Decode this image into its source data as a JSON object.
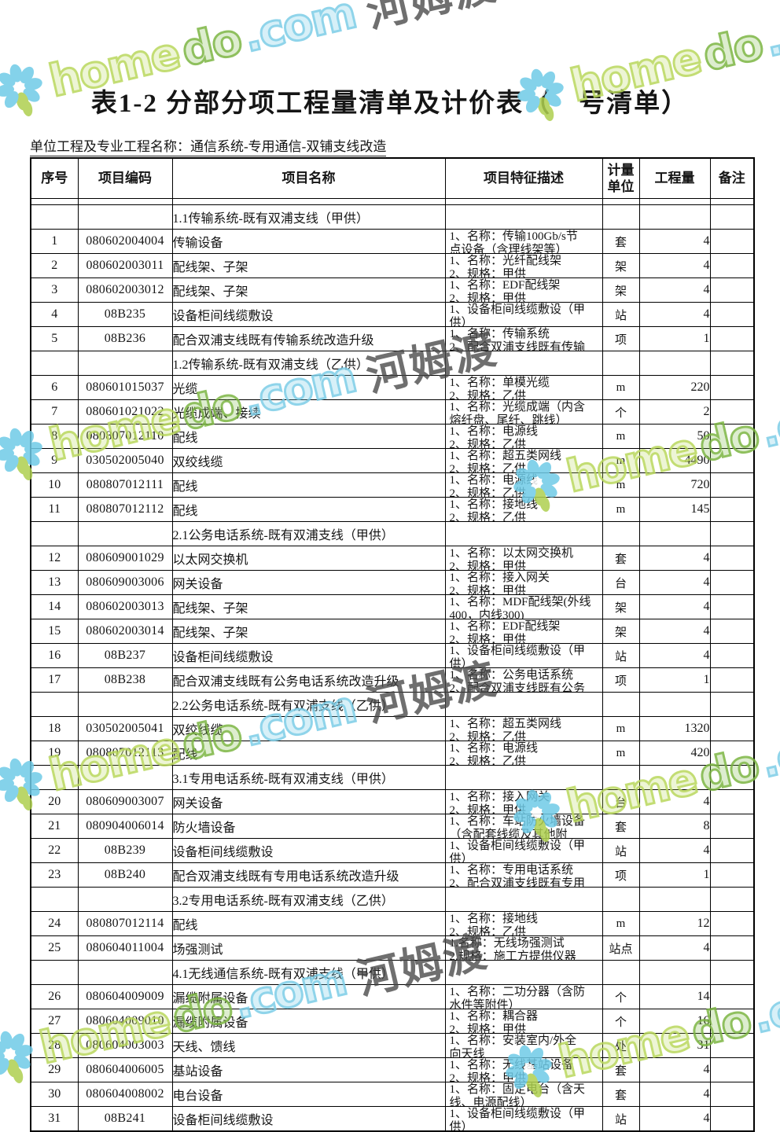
{
  "title": "表1-2 分部分项工程量清单及计价表（　号清单）",
  "subtitle": "单位工程及专业工程名称：通信系统-专用通信-双铺支线改造",
  "watermark": {
    "home": "home",
    "do": "do",
    "com": ".com",
    "cn": "河姆渡",
    "colors": {
      "petal_blue": "#6fcbe7",
      "petal_green": "#aed04f",
      "latin_light_green": "#b9d85c",
      "latin_dark_green": "#7cb642",
      "latin_cyan": "#7ccde7",
      "cn_gray": "#474747"
    }
  },
  "table": {
    "headers": [
      "序号",
      "项目编码",
      "项目名称",
      "项目特征描述",
      "计量单位",
      "工程量",
      "备注"
    ],
    "rows": [
      {
        "type": "section",
        "no": "",
        "code": "",
        "name": "1.1传输系统-既有双浦支线（甲供）",
        "d1": "",
        "d2": "",
        "unit": "",
        "qty": "",
        "note": ""
      },
      {
        "type": "item",
        "no": "1",
        "code": "080602004004",
        "name": "传输设备",
        "d1": "1、名称：传输100Gb/s节",
        "d2": "点设备（含理线架等）",
        "unit": "套",
        "qty": "4",
        "note": ""
      },
      {
        "type": "item",
        "no": "2",
        "code": "080602003011",
        "name": "配线架、子架",
        "d1": "1、名称：光纤配线架",
        "d2": "2、规格：甲供",
        "unit": "架",
        "qty": "4",
        "note": ""
      },
      {
        "type": "item",
        "no": "3",
        "code": "080602003012",
        "name": "配线架、子架",
        "d1": "1、名称：EDF配线架",
        "d2": "2、规格：甲供",
        "unit": "架",
        "qty": "4",
        "note": ""
      },
      {
        "type": "item",
        "no": "4",
        "code": "08B235",
        "name": "设备柜间线缆敷设",
        "d1": "1、设备柜间线缆敷设（甲",
        "d2": "供）",
        "unit": "站",
        "qty": "4",
        "note": ""
      },
      {
        "type": "item",
        "no": "5",
        "code": "08B236",
        "name": "配合双浦支线既有传输系统改造升级",
        "d1": "1、名称：传输系统",
        "d2": "2、配合双浦支线既有传输",
        "unit": "项",
        "qty": "1",
        "note": ""
      },
      {
        "type": "section",
        "no": "",
        "code": "",
        "name": "1.2传输系统-既有双浦支线（乙供）",
        "d1": "",
        "d2": "",
        "unit": "",
        "qty": "",
        "note": ""
      },
      {
        "type": "item",
        "no": "6",
        "code": "080601015037",
        "name": "光缆",
        "d1": "1、名称：单模光缆",
        "d2": "2、规格：乙供",
        "unit": "m",
        "qty": "220",
        "note": ""
      },
      {
        "type": "item",
        "no": "7",
        "code": "080601021022",
        "name": "光缆成端、接续",
        "d1": "1、名称：光缆成端（内含",
        "d2": "熔纤盘、尾纤、跳线）",
        "unit": "个",
        "qty": "2",
        "note": ""
      },
      {
        "type": "item",
        "no": "8",
        "code": "080807012110",
        "name": "配线",
        "d1": "1、名称：电源线",
        "d2": "2、规格：乙供",
        "unit": "m",
        "qty": "50",
        "note": ""
      },
      {
        "type": "item",
        "no": "9",
        "code": "030502005040",
        "name": "双绞线缆",
        "d1": "1、名称：超五类网线",
        "d2": "2、规格：乙供",
        "unit": "m",
        "qty": "4490",
        "note": ""
      },
      {
        "type": "item",
        "no": "10",
        "code": "080807012111",
        "name": "配线",
        "d1": "1、名称：电源线",
        "d2": "2、规格：乙供",
        "unit": "m",
        "qty": "720",
        "note": ""
      },
      {
        "type": "item",
        "no": "11",
        "code": "080807012112",
        "name": "配线",
        "d1": "1、名称：接地线",
        "d2": "2、规格：乙供",
        "unit": "m",
        "qty": "145",
        "note": ""
      },
      {
        "type": "section",
        "no": "",
        "code": "",
        "name": "2.1公务电话系统-既有双浦支线（甲供）",
        "d1": "",
        "d2": "",
        "unit": "",
        "qty": "",
        "note": ""
      },
      {
        "type": "item",
        "no": "12",
        "code": "080609001029",
        "name": "以太网交换机",
        "d1": "1、名称：以太网交换机",
        "d2": "2、规格：甲供",
        "unit": "套",
        "qty": "4",
        "note": ""
      },
      {
        "type": "item",
        "no": "13",
        "code": "080609003006",
        "name": "网关设备",
        "d1": "1、名称：接入网关",
        "d2": "2、规格：甲供",
        "unit": "台",
        "qty": "4",
        "note": ""
      },
      {
        "type": "item",
        "no": "14",
        "code": "080602003013",
        "name": "配线架、子架",
        "d1": "1、名称：MDF配线架(外线",
        "d2": "400，内线300)",
        "unit": "架",
        "qty": "4",
        "note": ""
      },
      {
        "type": "item",
        "no": "15",
        "code": "080602003014",
        "name": "配线架、子架",
        "d1": "1、名称：EDF配线架",
        "d2": "2、规格：甲供",
        "unit": "架",
        "qty": "4",
        "note": ""
      },
      {
        "type": "item",
        "no": "16",
        "code": "08B237",
        "name": "设备柜间线缆敷设",
        "d1": "1、设备柜间线缆敷设（甲",
        "d2": "供）",
        "unit": "站",
        "qty": "4",
        "note": ""
      },
      {
        "type": "item",
        "no": "17",
        "code": "08B238",
        "name": "配合双浦支线既有公务电话系统改造升级",
        "d1": "1、名称：公务电话系统",
        "d2": "2、配合双浦支线既有公务",
        "unit": "项",
        "qty": "1",
        "note": ""
      },
      {
        "type": "section",
        "no": "",
        "code": "",
        "name": "2.2公务电话系统-既有双浦支线（乙供）",
        "d1": "",
        "d2": "",
        "unit": "",
        "qty": "",
        "note": ""
      },
      {
        "type": "item",
        "no": "18",
        "code": "030502005041",
        "name": "双绞线缆",
        "d1": "1、名称：超五类网线",
        "d2": "2、规格：乙供",
        "unit": "m",
        "qty": "1320",
        "note": ""
      },
      {
        "type": "item",
        "no": "19",
        "code": "080807012113",
        "name": "配线",
        "d1": "1、名称：电源线",
        "d2": "2、规格：乙供",
        "unit": "m",
        "qty": "420",
        "note": ""
      },
      {
        "type": "section",
        "no": "",
        "code": "",
        "name": "3.1专用电话系统-既有双浦支线（甲供）",
        "d1": "",
        "d2": "",
        "unit": "",
        "qty": "",
        "note": ""
      },
      {
        "type": "item",
        "no": "20",
        "code": "080609003007",
        "name": "网关设备",
        "d1": "1、名称：接入网关",
        "d2": "2、规格：甲供",
        "unit": "台",
        "qty": "4",
        "note": ""
      },
      {
        "type": "item",
        "no": "21",
        "code": "080904006014",
        "name": "防火墙设备",
        "d1": "1、名称：车站防火墙设备",
        "d2": "（含配套线缆及其他附",
        "unit": "套",
        "qty": "8",
        "note": ""
      },
      {
        "type": "item",
        "no": "22",
        "code": "08B239",
        "name": "设备柜间线缆敷设",
        "d1": "1、设备柜间线缆敷设（甲",
        "d2": "供）",
        "unit": "站",
        "qty": "4",
        "note": ""
      },
      {
        "type": "item",
        "no": "23",
        "code": "08B240",
        "name": "配合双浦支线既有专用电话系统改造升级",
        "d1": "1、名称：专用电话系统",
        "d2": "2、配合双浦支线既有专用",
        "unit": "项",
        "qty": "1",
        "note": ""
      },
      {
        "type": "section",
        "no": "",
        "code": "",
        "name": "3.2专用电话系统-既有双浦支线（乙供）",
        "d1": "",
        "d2": "",
        "unit": "",
        "qty": "",
        "note": ""
      },
      {
        "type": "item",
        "no": "24",
        "code": "080807012114",
        "name": "配线",
        "d1": "1、名称：接地线",
        "d2": "2、规格：乙供",
        "unit": "m",
        "qty": "12",
        "note": ""
      },
      {
        "type": "item",
        "no": "25",
        "code": "080604011004",
        "name": "场强测试",
        "d1": "1.名称：无线场强测试",
        "d2": "2.规格：施工方提供仪器",
        "unit": "站点",
        "qty": "4",
        "note": ""
      },
      {
        "type": "section",
        "no": "",
        "code": "",
        "name": "4.1无线通信系统-既有双浦支线（甲供）",
        "d1": "",
        "d2": "",
        "unit": "",
        "qty": "",
        "note": ""
      },
      {
        "type": "item",
        "no": "26",
        "code": "080604009009",
        "name": "漏缆附属设备",
        "d1": "1、名称：二功分器（含防",
        "d2": "水件等附件）",
        "unit": "个",
        "qty": "14",
        "note": ""
      },
      {
        "type": "item",
        "no": "27",
        "code": "080604009010",
        "name": "漏缆附属设备",
        "d1": "1、名称：耦合器",
        "d2": "2、规格：甲供",
        "unit": "个",
        "qty": "16",
        "note": ""
      },
      {
        "type": "item",
        "no": "28",
        "code": "080604003003",
        "name": "天线、馈线",
        "d1": "1、名称：安装室内/外全",
        "d2": "向天线",
        "unit": "处",
        "qty": "31",
        "note": ""
      },
      {
        "type": "item",
        "no": "29",
        "code": "080604006005",
        "name": "基站设备",
        "d1": "1、名称：无线基站设备",
        "d2": "2、规格：甲供",
        "unit": "套",
        "qty": "4",
        "note": ""
      },
      {
        "type": "item",
        "no": "30",
        "code": "080604008002",
        "name": "电台设备",
        "d1": "1、名称：固定电台（含天",
        "d2": "线、电源配线）",
        "unit": "套",
        "qty": "4",
        "note": ""
      },
      {
        "type": "item",
        "no": "31",
        "code": "08B241",
        "name": "设备柜间线缆敷设",
        "d1": "1、设备柜间线缆敷设（甲",
        "d2": "供）",
        "unit": "站",
        "qty": "4",
        "note": ""
      }
    ]
  }
}
